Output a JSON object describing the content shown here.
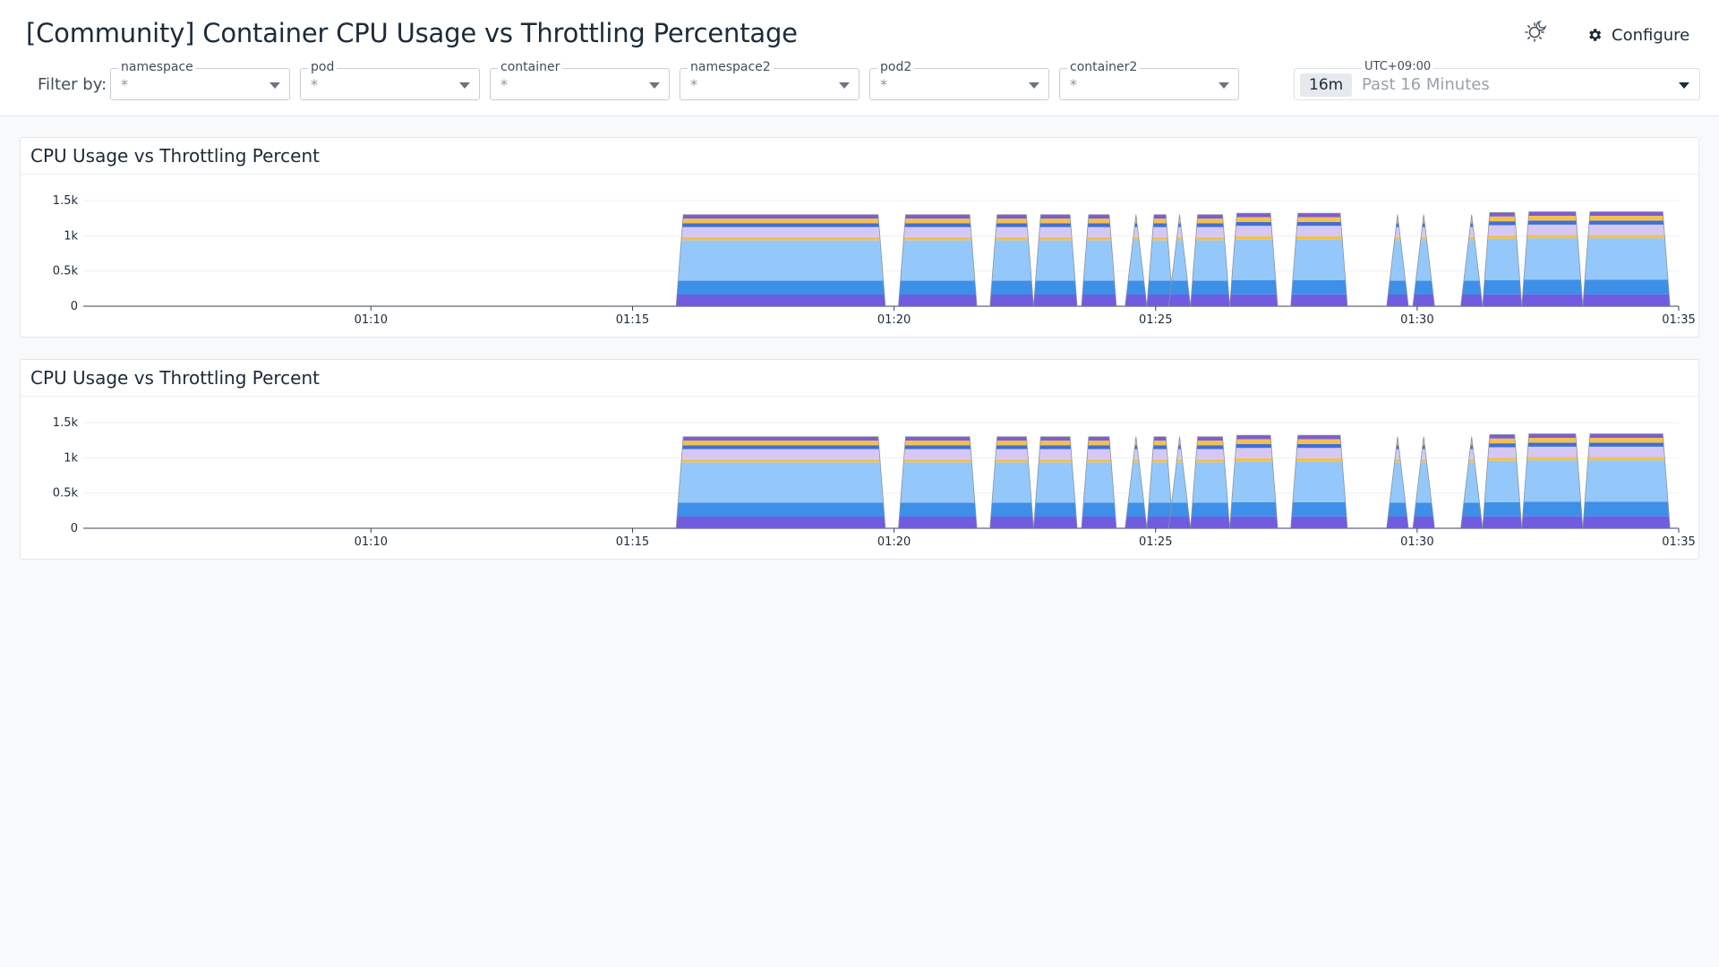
{
  "header": {
    "title": "[Community] Container CPU Usage vs Throttling Percentage",
    "configure_label": "Configure",
    "filter_by_label": "Filter by:"
  },
  "filters": [
    {
      "label": "namespace",
      "value": "*"
    },
    {
      "label": "pod",
      "value": "*"
    },
    {
      "label": "container",
      "value": "*"
    },
    {
      "label": "namespace2",
      "value": "*"
    },
    {
      "label": "pod2",
      "value": "*"
    },
    {
      "label": "container2",
      "value": "*"
    }
  ],
  "timepicker": {
    "timezone": "UTC+09:00",
    "badge": "16m",
    "range": "Past 16 Minutes"
  },
  "icons": {
    "theme": "sun-moon-icon",
    "configure": "gear-icon",
    "dropdown": "caret-down-icon"
  },
  "chart_data": [
    {
      "type": "area",
      "title": "CPU Usage vs Throttling Percent",
      "x_ticks": [
        "01:10",
        "01:15",
        "01:20",
        "01:25",
        "01:30",
        "01:35"
      ],
      "y_ticks": [
        "0",
        "0.5k",
        "1k",
        "1.5k"
      ],
      "ylim": [
        0,
        1500
      ],
      "stacked": true,
      "series_colors": [
        "#6f5ce0",
        "#3d8fe8",
        "#94c8fb",
        "#f3c14e",
        "#d6c8f4",
        "#3f6fd6",
        "#f3c14e",
        "#7e5dcf"
      ],
      "series_values": [
        150,
        180,
        520,
        40,
        130,
        50,
        60,
        50
      ],
      "segments": [
        {
          "start": "01:15:50",
          "end": "01:19:50",
          "total": 1300
        },
        {
          "start": "01:20:05",
          "end": "01:21:35",
          "total": 1300
        },
        {
          "start": "01:21:50",
          "end": "01:22:40",
          "total": 1300
        },
        {
          "start": "01:22:40",
          "end": "01:23:30",
          "total": 1300
        },
        {
          "start": "01:23:35",
          "end": "01:24:15",
          "total": 1300
        },
        {
          "start": "01:24:25",
          "end": "01:24:50",
          "total": 1300,
          "spike": true
        },
        {
          "start": "01:24:50",
          "end": "01:25:20",
          "total": 1300
        },
        {
          "start": "01:25:15",
          "end": "01:25:40",
          "total": 1300,
          "spike": true
        },
        {
          "start": "01:25:40",
          "end": "01:26:25",
          "total": 1300
        },
        {
          "start": "01:26:25",
          "end": "01:27:20",
          "total": 1320
        },
        {
          "start": "01:27:35",
          "end": "01:28:40",
          "total": 1320
        },
        {
          "start": "01:29:25",
          "end": "01:29:50",
          "total": 1300,
          "spike": true
        },
        {
          "start": "01:29:55",
          "end": "01:30:20",
          "total": 1300,
          "spike": true
        },
        {
          "start": "01:30:50",
          "end": "01:31:15",
          "total": 1300,
          "spike": true
        },
        {
          "start": "01:31:15",
          "end": "01:32:00",
          "total": 1330
        },
        {
          "start": "01:32:00",
          "end": "01:33:10",
          "total": 1340
        },
        {
          "start": "01:33:10",
          "end": "01:34:50",
          "total": 1340
        }
      ]
    },
    {
      "type": "area",
      "title": "CPU Usage vs Throttling Percent",
      "x_ticks": [
        "01:10",
        "01:15",
        "01:20",
        "01:25",
        "01:30",
        "01:35"
      ],
      "y_ticks": [
        "0",
        "0.5k",
        "1k",
        "1.5k"
      ],
      "ylim": [
        0,
        1500
      ],
      "stacked": true,
      "series_colors": [
        "#6f5ce0",
        "#3d8fe8",
        "#94c8fb",
        "#f3c14e",
        "#d6c8f4",
        "#3f6fd6",
        "#f3c14e",
        "#7e5dcf"
      ],
      "series_values": [
        150,
        180,
        520,
        40,
        130,
        50,
        60,
        50
      ],
      "segments": [
        {
          "start": "01:15:50",
          "end": "01:19:50",
          "total": 1300
        },
        {
          "start": "01:20:05",
          "end": "01:21:35",
          "total": 1300
        },
        {
          "start": "01:21:50",
          "end": "01:22:40",
          "total": 1300
        },
        {
          "start": "01:22:40",
          "end": "01:23:30",
          "total": 1300
        },
        {
          "start": "01:23:35",
          "end": "01:24:15",
          "total": 1300
        },
        {
          "start": "01:24:25",
          "end": "01:24:50",
          "total": 1300,
          "spike": true
        },
        {
          "start": "01:24:50",
          "end": "01:25:20",
          "total": 1300
        },
        {
          "start": "01:25:15",
          "end": "01:25:40",
          "total": 1300,
          "spike": true
        },
        {
          "start": "01:25:40",
          "end": "01:26:25",
          "total": 1300
        },
        {
          "start": "01:26:25",
          "end": "01:27:20",
          "total": 1320
        },
        {
          "start": "01:27:35",
          "end": "01:28:40",
          "total": 1320
        },
        {
          "start": "01:29:25",
          "end": "01:29:50",
          "total": 1300,
          "spike": true
        },
        {
          "start": "01:29:55",
          "end": "01:30:20",
          "total": 1300,
          "spike": true
        },
        {
          "start": "01:30:50",
          "end": "01:31:15",
          "total": 1300,
          "spike": true
        },
        {
          "start": "01:31:15",
          "end": "01:32:00",
          "total": 1330
        },
        {
          "start": "01:32:00",
          "end": "01:33:10",
          "total": 1340
        },
        {
          "start": "01:33:10",
          "end": "01:34:50",
          "total": 1340
        }
      ]
    }
  ]
}
